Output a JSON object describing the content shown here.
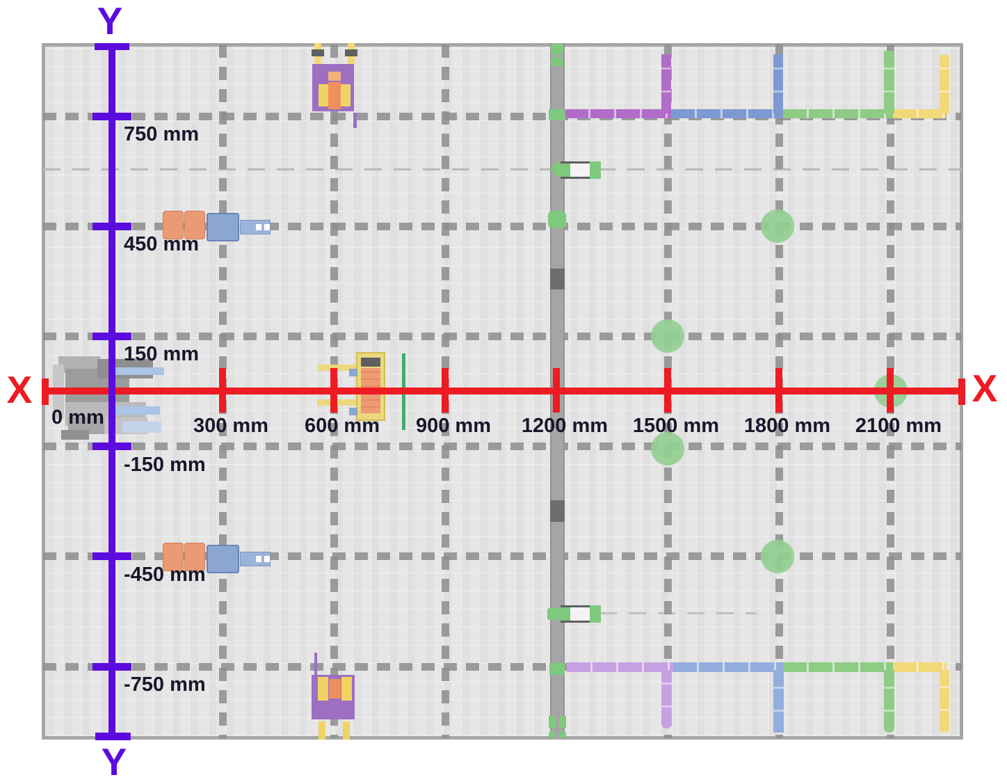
{
  "axes": {
    "x": {
      "letter_left": "X",
      "letter_right": "X",
      "color": "#ee1b23",
      "ticks": [
        {
          "label": "0 mm",
          "mm": 0
        },
        {
          "label": "300 mm",
          "mm": 300
        },
        {
          "label": "600 mm",
          "mm": 600
        },
        {
          "label": "900 mm",
          "mm": 900
        },
        {
          "label": "1200 mm",
          "mm": 1200
        },
        {
          "label": "1500 mm",
          "mm": 1500
        },
        {
          "label": "1800 mm",
          "mm": 1800
        },
        {
          "label": "2100 mm",
          "mm": 2100
        }
      ]
    },
    "y": {
      "letter_top": "Y",
      "letter_bottom": "Y",
      "color": "#5c0bdf",
      "ticks": [
        {
          "label": "750 mm",
          "mm": 750
        },
        {
          "label": "450 mm",
          "mm": 450
        },
        {
          "label": "150 mm",
          "mm": 150
        },
        {
          "label": "-150 mm",
          "mm": -150
        },
        {
          "label": "-450 mm",
          "mm": -450
        },
        {
          "label": "-750 mm",
          "mm": -750
        }
      ]
    }
  },
  "colors": {
    "label_text": "#17172b",
    "floor": "#e6e6e6",
    "floor_border": "#a6a6a6",
    "grid_dash": "#8d8d8d",
    "thin_dash": "#b9b9b9",
    "road": "#a5a5a5",
    "road_dark": "#6d6d6d",
    "marker_green": "#7fc97f",
    "circle_green": "#92cf92",
    "track_purple": "#b16cc9",
    "track_blue": "#7d99d3",
    "track_green": "#8ecb85",
    "track_yellow": "#f3d877",
    "track_purple_light": "#c7a1e3",
    "track_blue_light": "#93aede",
    "cart_frame": "#5f5f5f",
    "cart_body": "#f4f4f4",
    "agv_orange": "#ea9a74",
    "agv_blue": "#8ba6cf",
    "agv_blue_light": "#9cb3d9",
    "machine_purple": "#9c6fc2",
    "machine_yellow": "#f0d463",
    "machine_orange": "#ef8f5e",
    "machine_orange_light": "#f2b27c",
    "machine_dark": "#5f5f5f",
    "machine_frame_yellow": "#ecd87e",
    "machine_cyl_orange": "#ee9a72",
    "machine_green": "#3fae68",
    "gray1": "#b2b2b2",
    "gray2": "#c8c8c8",
    "gray3": "#9c9c9c",
    "gray4": "#8f8f8f",
    "gray5": "#bababa",
    "gray6": "#a6a6a6",
    "gray7": "#c4c4c4",
    "gray8": "#909090",
    "blue_accent": "#a9c4e4",
    "blue_accent_light": "#c3d4ea",
    "white": "#ffffff"
  }
}
